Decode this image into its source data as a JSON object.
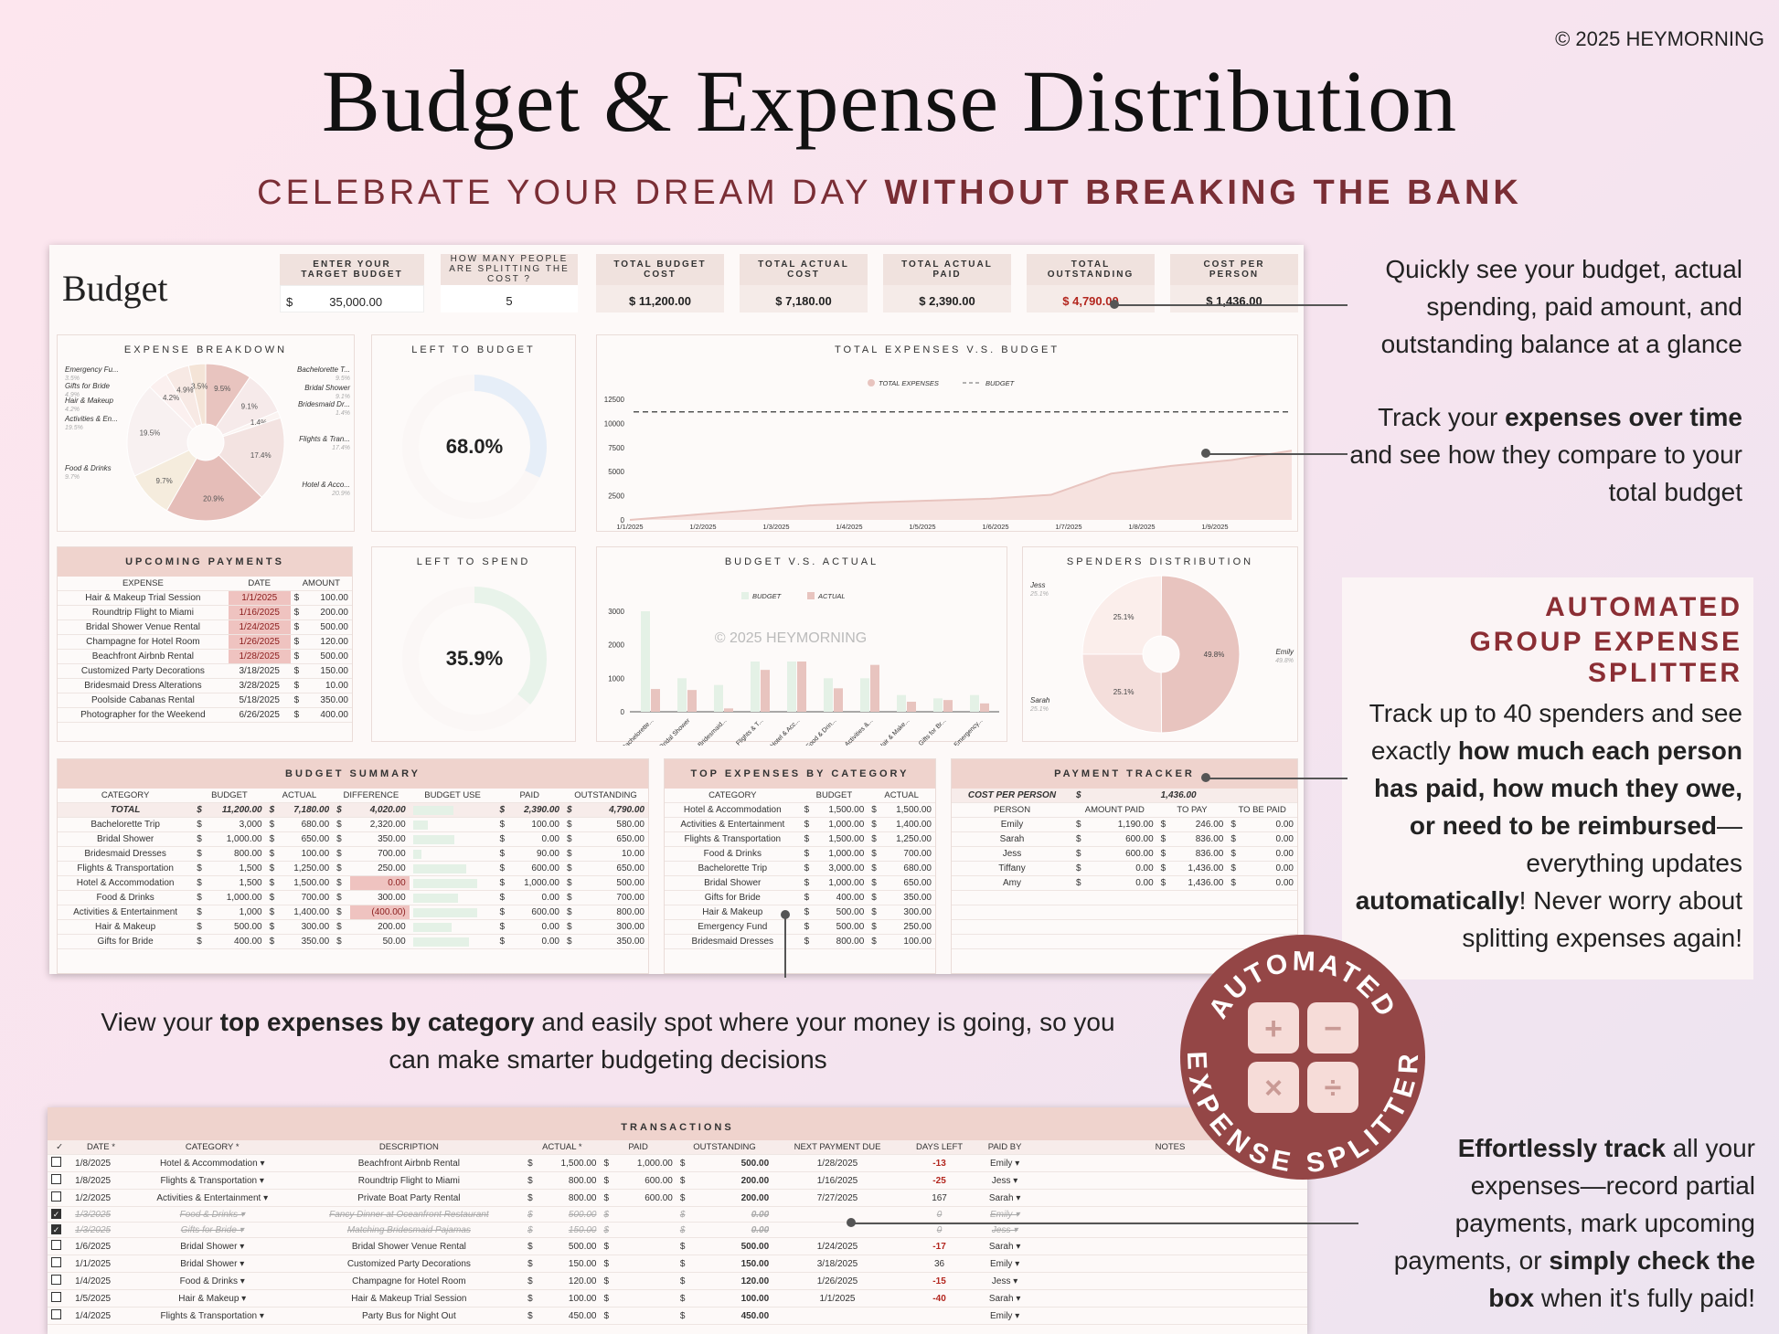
{
  "copyright": "© 2025 HEYMORNING",
  "title": "Budget  &  Expense Distribution",
  "subtitle_a": "CELEBRATE YOUR DREAM DAY ",
  "subtitle_b": "WITHOUT BREAKING THE BANK",
  "sheet": {
    "title": "Budget",
    "target_label": "ENTER YOUR TARGET BUDGET",
    "target_sym": "$",
    "target_value": "35,000.00",
    "people_label": "HOW MANY PEOPLE ARE SPLITTING THE COST ?",
    "people_value": "5",
    "cards": [
      {
        "label": "TOTAL BUDGET COST",
        "value": "$ 11,200.00"
      },
      {
        "label": "TOTAL ACTUAL COST",
        "value": "$ 7,180.00"
      },
      {
        "label": "TOTAL ACTUAL PAID",
        "value": "$ 2,390.00"
      },
      {
        "label": "TOTAL OUTSTANDING",
        "value": "$ 4,790.00"
      },
      {
        "label": "COST PER PERSON",
        "value": "$ 1,436.00"
      }
    ]
  },
  "breakdown": {
    "title": "EXPENSE BREAKDOWN",
    "labels": [
      {
        "n": "Emergency Fu...",
        "p": "3.5%"
      },
      {
        "n": "Gifts for Bride",
        "p": "4.9%"
      },
      {
        "n": "Hair & Makeup",
        "p": "4.2%"
      },
      {
        "n": "Activities & En...",
        "p": "19.5%"
      },
      {
        "n": "Food & Drinks",
        "p": "9.7%"
      },
      {
        "n": "Bachelorette T...",
        "p": "9.5%"
      },
      {
        "n": "Bridal Shower",
        "p": "9.1%"
      },
      {
        "n": "Bridesmaid Dr...",
        "p": "1.4%"
      },
      {
        "n": "Flights & Tran...",
        "p": "17.4%"
      },
      {
        "n": "Hotel & Acco...",
        "p": "20.9%"
      }
    ]
  },
  "left_budget": {
    "title": "LEFT TO BUDGET",
    "value": "68.0%"
  },
  "left_spend": {
    "title": "LEFT TO SPEND",
    "value": "35.9%"
  },
  "line_chart": {
    "title": "TOTAL EXPENSES V.S. BUDGET",
    "legend_a": "TOTAL EXPENSES",
    "legend_b": "BUDGET"
  },
  "bar_chart": {
    "title": "BUDGET V.S. ACTUAL",
    "legend_a": "BUDGET",
    "legend_b": "ACTUAL",
    "watermark": "© 2025 HEYMORNING"
  },
  "spenders": {
    "title": "SPENDERS DISTRIBUTION",
    "labels": [
      {
        "n": "Jess",
        "p": "25.1%"
      },
      {
        "n": "Emily",
        "p": "49.8%"
      },
      {
        "n": "Sarah",
        "p": "25.1%"
      }
    ],
    "inner": [
      "25.1%",
      "49.8%",
      "25.1%"
    ]
  },
  "upcoming": {
    "title": "UPCOMING PAYMENTS",
    "headers": [
      "EXPENSE",
      "DATE",
      "AMOUNT"
    ],
    "rows": [
      [
        "Hair & Makeup Trial Session",
        "1/1/2025",
        "$",
        "100.00"
      ],
      [
        "Roundtrip Flight to Miami",
        "1/16/2025",
        "$",
        "200.00"
      ],
      [
        "Bridal Shower Venue Rental",
        "1/24/2025",
        "$",
        "500.00"
      ],
      [
        "Champagne for Hotel Room",
        "1/26/2025",
        "$",
        "120.00"
      ],
      [
        "Beachfront Airbnb Rental",
        "1/28/2025",
        "$",
        "500.00"
      ],
      [
        "Customized Party Decorations",
        "3/18/2025",
        "$",
        "150.00"
      ],
      [
        "Bridesmaid Dress Alterations",
        "3/28/2025",
        "$",
        "10.00"
      ],
      [
        "Poolside Cabanas Rental",
        "5/18/2025",
        "$",
        "350.00"
      ],
      [
        "Photographer for the Weekend",
        "6/26/2025",
        "$",
        "400.00"
      ]
    ]
  },
  "summary": {
    "title": "BUDGET SUMMARY",
    "headers": [
      "CATEGORY",
      "BUDGET",
      "ACTUAL",
      "DIFFERENCE",
      "BUDGET USE",
      "PAID",
      "OUTSTANDING"
    ],
    "rows": [
      [
        "TOTAL",
        "11,200.00",
        "7,180.00",
        "4,020.00",
        "2,390.00",
        "4,790.00"
      ],
      [
        "Bachelorette Trip",
        "3,000",
        "680.00",
        "2,320.00",
        "100.00",
        "580.00"
      ],
      [
        "Bridal Shower",
        "1,000.00",
        "650.00",
        "350.00",
        "0.00",
        "650.00"
      ],
      [
        "Bridesmaid Dresses",
        "800.00",
        "100.00",
        "700.00",
        "90.00",
        "10.00"
      ],
      [
        "Flights & Transportation",
        "1,500",
        "1,250.00",
        "250.00",
        "600.00",
        "650.00"
      ],
      [
        "Hotel & Accommodation",
        "1,500",
        "1,500.00",
        "0.00",
        "1,000.00",
        "500.00"
      ],
      [
        "Food & Drinks",
        "1,000.00",
        "700.00",
        "300.00",
        "0.00",
        "700.00"
      ],
      [
        "Activities & Entertainment",
        "1,000",
        "1,400.00",
        "(400.00)",
        "600.00",
        "800.00"
      ],
      [
        "Hair & Makeup",
        "500.00",
        "300.00",
        "200.00",
        "0.00",
        "300.00"
      ],
      [
        "Gifts for Bride",
        "400.00",
        "350.00",
        "50.00",
        "0.00",
        "350.00"
      ]
    ]
  },
  "top": {
    "title": "TOP EXPENSES BY CATEGORY",
    "headers": [
      "CATEGORY",
      "BUDGET",
      "ACTUAL"
    ],
    "rows": [
      [
        "Hotel & Accommodation",
        "1,500.00",
        "1,500.00"
      ],
      [
        "Activities & Entertainment",
        "1,000.00",
        "1,400.00"
      ],
      [
        "Flights & Transportation",
        "1,500.00",
        "1,250.00"
      ],
      [
        "Food & Drinks",
        "1,000.00",
        "700.00"
      ],
      [
        "Bachelorette Trip",
        "3,000.00",
        "680.00"
      ],
      [
        "Bridal Shower",
        "1,000.00",
        "650.00"
      ],
      [
        "Gifts for Bride",
        "400.00",
        "350.00"
      ],
      [
        "Hair & Makeup",
        "500.00",
        "300.00"
      ],
      [
        "Emergency Fund",
        "500.00",
        "250.00"
      ],
      [
        "Bridesmaid Dresses",
        "800.00",
        "100.00"
      ]
    ]
  },
  "tracker": {
    "title": "PAYMENT TRACKER",
    "cpp_label": "COST PER PERSON",
    "cpp_value": "1,436.00",
    "headers": [
      "PERSON",
      "AMOUNT PAID",
      "TO PAY",
      "TO BE PAID"
    ],
    "rows": [
      [
        "Emily",
        "1,190.00",
        "246.00",
        "0.00"
      ],
      [
        "Sarah",
        "600.00",
        "836.00",
        "0.00"
      ],
      [
        "Jess",
        "600.00",
        "836.00",
        "0.00"
      ],
      [
        "Tiffany",
        "0.00",
        "1,436.00",
        "0.00"
      ],
      [
        "Amy",
        "0.00",
        "1,436.00",
        "0.00"
      ]
    ]
  },
  "transactions": {
    "title": "TRANSACTIONS",
    "headers": [
      "✓",
      "DATE *",
      "CATEGORY *",
      "DESCRIPTION",
      "ACTUAL *",
      "PAID",
      "OUTSTANDING",
      "NEXT PAYMENT DUE",
      "DAYS LEFT",
      "PAID BY",
      "NOTES"
    ],
    "rows": [
      [
        "",
        "1/8/2025",
        "Hotel & Accommodation",
        "Beachfront Airbnb Rental",
        "1,500.00",
        "1,000.00",
        "500.00",
        "1/28/2025",
        "-13",
        "Emily"
      ],
      [
        "",
        "1/8/2025",
        "Flights & Transportation",
        "Roundtrip Flight to Miami",
        "800.00",
        "600.00",
        "200.00",
        "1/16/2025",
        "-25",
        "Jess"
      ],
      [
        "",
        "1/2/2025",
        "Activities & Entertainment",
        "Private Boat Party Rental",
        "800.00",
        "600.00",
        "200.00",
        "7/27/2025",
        "167",
        "Sarah"
      ],
      [
        "✓",
        "1/3/2025",
        "Food & Drinks",
        "Fancy Dinner at Oceanfront Restaurant",
        "500.00",
        "",
        "0.00",
        "",
        "0",
        "Emily"
      ],
      [
        "✓",
        "1/3/2025",
        "Gifts for Bride",
        "Matching Bridesmaid Pajamas",
        "150.00",
        "",
        "0.00",
        "",
        "0",
        "Jess"
      ],
      [
        "",
        "1/6/2025",
        "Bridal Shower",
        "Bridal Shower Venue Rental",
        "500.00",
        "",
        "500.00",
        "1/24/2025",
        "-17",
        "Sarah"
      ],
      [
        "",
        "1/1/2025",
        "Bridal Shower",
        "Customized Party Decorations",
        "150.00",
        "",
        "150.00",
        "3/18/2025",
        "36",
        "Emily"
      ],
      [
        "",
        "1/4/2025",
        "Food & Drinks",
        "Champagne for Hotel Room",
        "120.00",
        "",
        "120.00",
        "1/26/2025",
        "-15",
        "Jess"
      ],
      [
        "",
        "1/5/2025",
        "Hair & Makeup",
        "Hair & Makeup Trial Session",
        "100.00",
        "",
        "100.00",
        "1/1/2025",
        "-40",
        "Sarah"
      ],
      [
        "",
        "1/4/2025",
        "Flights & Transportation",
        "Party Bus for Night Out",
        "450.00",
        "",
        "450.00",
        "",
        "",
        "Emily"
      ]
    ]
  },
  "notes": {
    "n1": "Quickly see your budget, actual spending, paid amount, and outstanding balance at a glance",
    "n2a": "Track your ",
    "n2b": "expenses over time",
    "n2c": " and see how they compare to your total budget",
    "side_head1": "AUTOMATED",
    "side_head2": "GROUP EXPENSE SPLITTER",
    "side_a": "Track up to 40 spenders and see exactly ",
    "side_b": "how much each person has paid, how much they owe, or need to be reimbursed",
    "side_c": "—everything updates ",
    "side_d": "automatically",
    "side_e": "! Never worry about splitting expenses again!",
    "n3a": "View your ",
    "n3b": "top expenses by category",
    "n3c": " and easily spot where your money is going, so you can make smarter budgeting decisions",
    "n4a": "Effortlessly track",
    "n4b": " all your expenses—record partial payments, mark upcoming payments, or ",
    "n4c": "simply check the box",
    "n4d": " when it's fully paid!"
  },
  "badge": {
    "top": "AUTOMATED",
    "bottom": "EXPENSE SPLITTER",
    "keys": [
      "+",
      "−",
      "×",
      "÷"
    ]
  },
  "colors": {
    "accent": "#7a2e35",
    "pink": "#e8c4bf",
    "green": "#e4f1e6",
    "header": "#efd3cd"
  }
}
